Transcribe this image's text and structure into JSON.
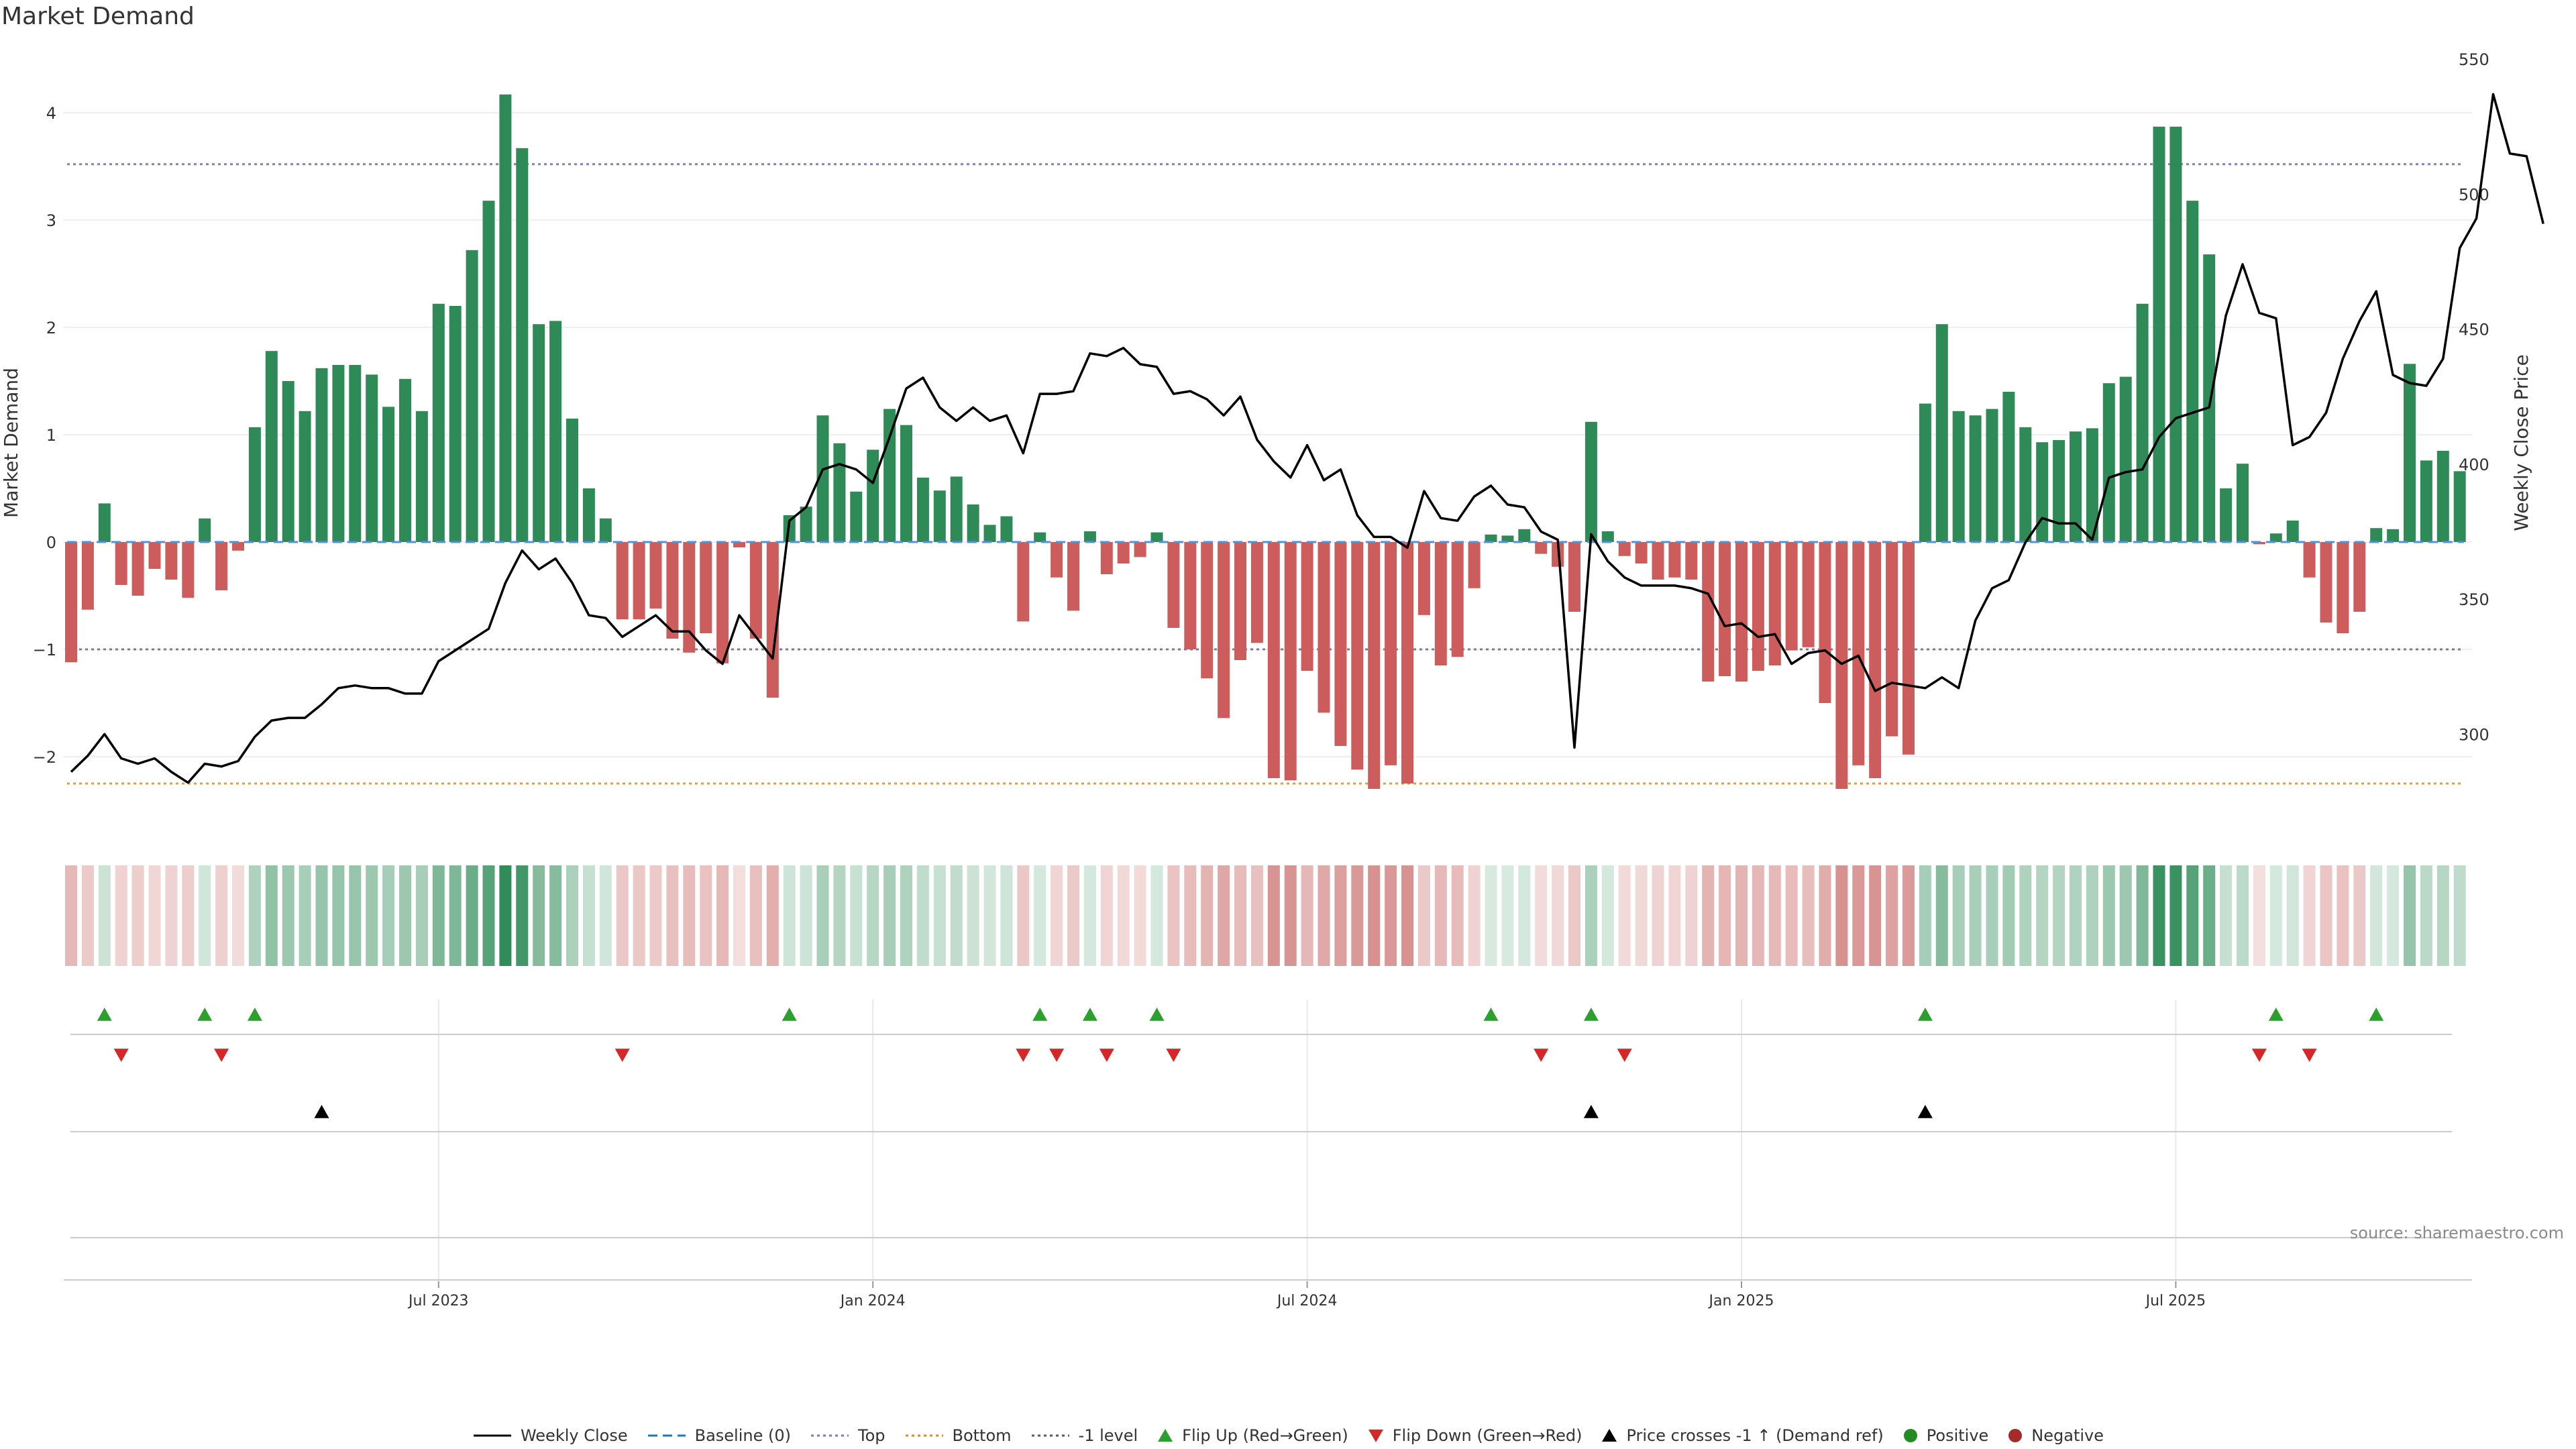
{
  "title": "Market Demand",
  "source": "source: sharemaestro.com",
  "colors": {
    "positive_bar": "#2e8b57",
    "negative_bar": "#cd5c5c",
    "price_line": "#000000",
    "top_line": "#8080c0",
    "bottom_line": "#e0a040",
    "minus1_line": "#7a7a9a",
    "baseline": "#5a8fd0",
    "flip_up": "#2ca02c",
    "flip_down": "#d62728",
    "cross": "#000000",
    "heat_positive": "#2e8b57",
    "heat_negative": "#c0504d"
  },
  "legend": [
    {
      "label": "Weekly Close",
      "icon": "solid-line",
      "color": "#000000"
    },
    {
      "label": "Baseline (0)",
      "icon": "dashed-line",
      "color": "#1f77b4"
    },
    {
      "label": "Top",
      "icon": "dotted-line",
      "color": "#7a7ab0"
    },
    {
      "label": "Bottom",
      "icon": "dotted-line",
      "color": "#e08a1e"
    },
    {
      "label": "-1 level",
      "icon": "dotted-line",
      "color": "#555577"
    },
    {
      "label": "Flip Up (Red→Green)",
      "icon": "triangle-up",
      "color": "#2ca02c"
    },
    {
      "label": "Flip Down (Green→Red)",
      "icon": "triangle-down",
      "color": "#d62728"
    },
    {
      "label": "Price crosses -1 ↑ (Demand ref)",
      "icon": "triangle-up",
      "color": "#000000"
    },
    {
      "label": "Positive",
      "icon": "circle",
      "color": "#228b22"
    },
    {
      "label": "Negative",
      "icon": "circle",
      "color": "#a52a2a"
    }
  ],
  "chart_data": {
    "type": "bar",
    "title": "Market Demand",
    "ylabel": "Market Demand",
    "y2label": "Weekly Close Price",
    "ylim": [
      -2.7,
      4.5
    ],
    "y2lim": [
      270,
      552
    ],
    "yticks": [
      -2,
      -1,
      0,
      1,
      2,
      3,
      4
    ],
    "y2ticks": [
      300,
      350,
      400,
      450,
      500,
      550
    ],
    "x_ticks": [
      "Jul 2023",
      "Jan 2024",
      "Jul 2024",
      "Jan 2025",
      "Jul 2025"
    ],
    "x_tick_week_index": [
      22,
      48,
      74,
      100,
      126
    ],
    "levels": {
      "top": 3.52,
      "bottom": -2.25,
      "minus_one": -1.0,
      "baseline": 0
    },
    "demand": [
      -1.12,
      -0.63,
      0.36,
      -0.4,
      -0.5,
      -0.25,
      -0.35,
      -0.52,
      0.22,
      -0.45,
      -0.08,
      1.07,
      1.78,
      1.5,
      1.22,
      1.62,
      1.65,
      1.65,
      1.56,
      1.26,
      1.52,
      1.22,
      2.22,
      2.2,
      2.72,
      3.18,
      4.17,
      3.67,
      2.03,
      2.06,
      1.15,
      0.5,
      0.22,
      -0.72,
      -0.72,
      -0.62,
      -0.9,
      -1.03,
      -0.85,
      -1.13,
      -0.05,
      -0.9,
      -1.45,
      0.25,
      0.33,
      1.18,
      0.92,
      0.47,
      0.86,
      1.24,
      1.09,
      0.6,
      0.48,
      0.61,
      0.35,
      0.16,
      0.24,
      -0.74,
      0.09,
      -0.33,
      -0.64,
      0.1,
      -0.3,
      -0.2,
      -0.14,
      0.09,
      -0.8,
      -1.0,
      -1.27,
      -1.64,
      -1.1,
      -0.94,
      -2.2,
      -2.22,
      -1.2,
      -1.59,
      -1.9,
      -2.12,
      -2.3,
      -2.08,
      -2.25,
      -0.68,
      -1.15,
      -1.07,
      -0.43,
      0.07,
      0.06,
      0.12,
      -0.11,
      -0.23,
      -0.65,
      1.12,
      0.1,
      -0.13,
      -0.2,
      -0.35,
      -0.33,
      -0.35,
      -1.3,
      -1.25,
      -1.3,
      -1.2,
      -1.15,
      -1.01,
      -0.98,
      -1.5,
      -2.3,
      -2.08,
      -2.2,
      -1.81,
      -1.98,
      1.29,
      2.03,
      1.22,
      1.18,
      1.24,
      1.4,
      1.07,
      0.93,
      0.95,
      1.03,
      1.06,
      1.48,
      1.54,
      2.22,
      3.87,
      3.87,
      3.18,
      2.68,
      0.5,
      0.73,
      -0.02,
      0.08,
      0.2,
      -0.33,
      -0.75,
      -0.85,
      -0.65,
      0.13,
      0.12,
      1.66,
      0.76,
      0.85,
      0.66
    ],
    "weekly_close": [
      286,
      292,
      300,
      291,
      289,
      291,
      286,
      282,
      289,
      288,
      290,
      299,
      305,
      306,
      306,
      311,
      317,
      318,
      317,
      317,
      315,
      315,
      327,
      331,
      335,
      339,
      356,
      368,
      361,
      365,
      356,
      344,
      343,
      336,
      340,
      344,
      338,
      338,
      331,
      326,
      344,
      336,
      328,
      379,
      384,
      398,
      400,
      398,
      393,
      410,
      428,
      432,
      421,
      416,
      421,
      416,
      418,
      404,
      426,
      426,
      427,
      441,
      440,
      443,
      437,
      436,
      426,
      427,
      424,
      418,
      425,
      409,
      401,
      395,
      407,
      394,
      398,
      381,
      373,
      373,
      369,
      390,
      380,
      379,
      388,
      392,
      385,
      384,
      375,
      372,
      295,
      374,
      364,
      358,
      355,
      355,
      355,
      354,
      352,
      340,
      341,
      336,
      337,
      326,
      330,
      331,
      326,
      329,
      316,
      319,
      318,
      317,
      321,
      317,
      342,
      354,
      357,
      371,
      380,
      378,
      378,
      372,
      395,
      397,
      398,
      410,
      417,
      419,
      421,
      455,
      474,
      456,
      454,
      407,
      410,
      419,
      439,
      453,
      464,
      433,
      430,
      429,
      439,
      480,
      491,
      537,
      515,
      514,
      489
    ],
    "flip_up_weeks": [
      2,
      8,
      11,
      43,
      58,
      61,
      65,
      85,
      91,
      111,
      132,
      138
    ],
    "flip_down_weeks": [
      3,
      9,
      33,
      57,
      59,
      62,
      66,
      88,
      93,
      131,
      134
    ],
    "price_cross_weeks": [
      15,
      91,
      111
    ]
  }
}
